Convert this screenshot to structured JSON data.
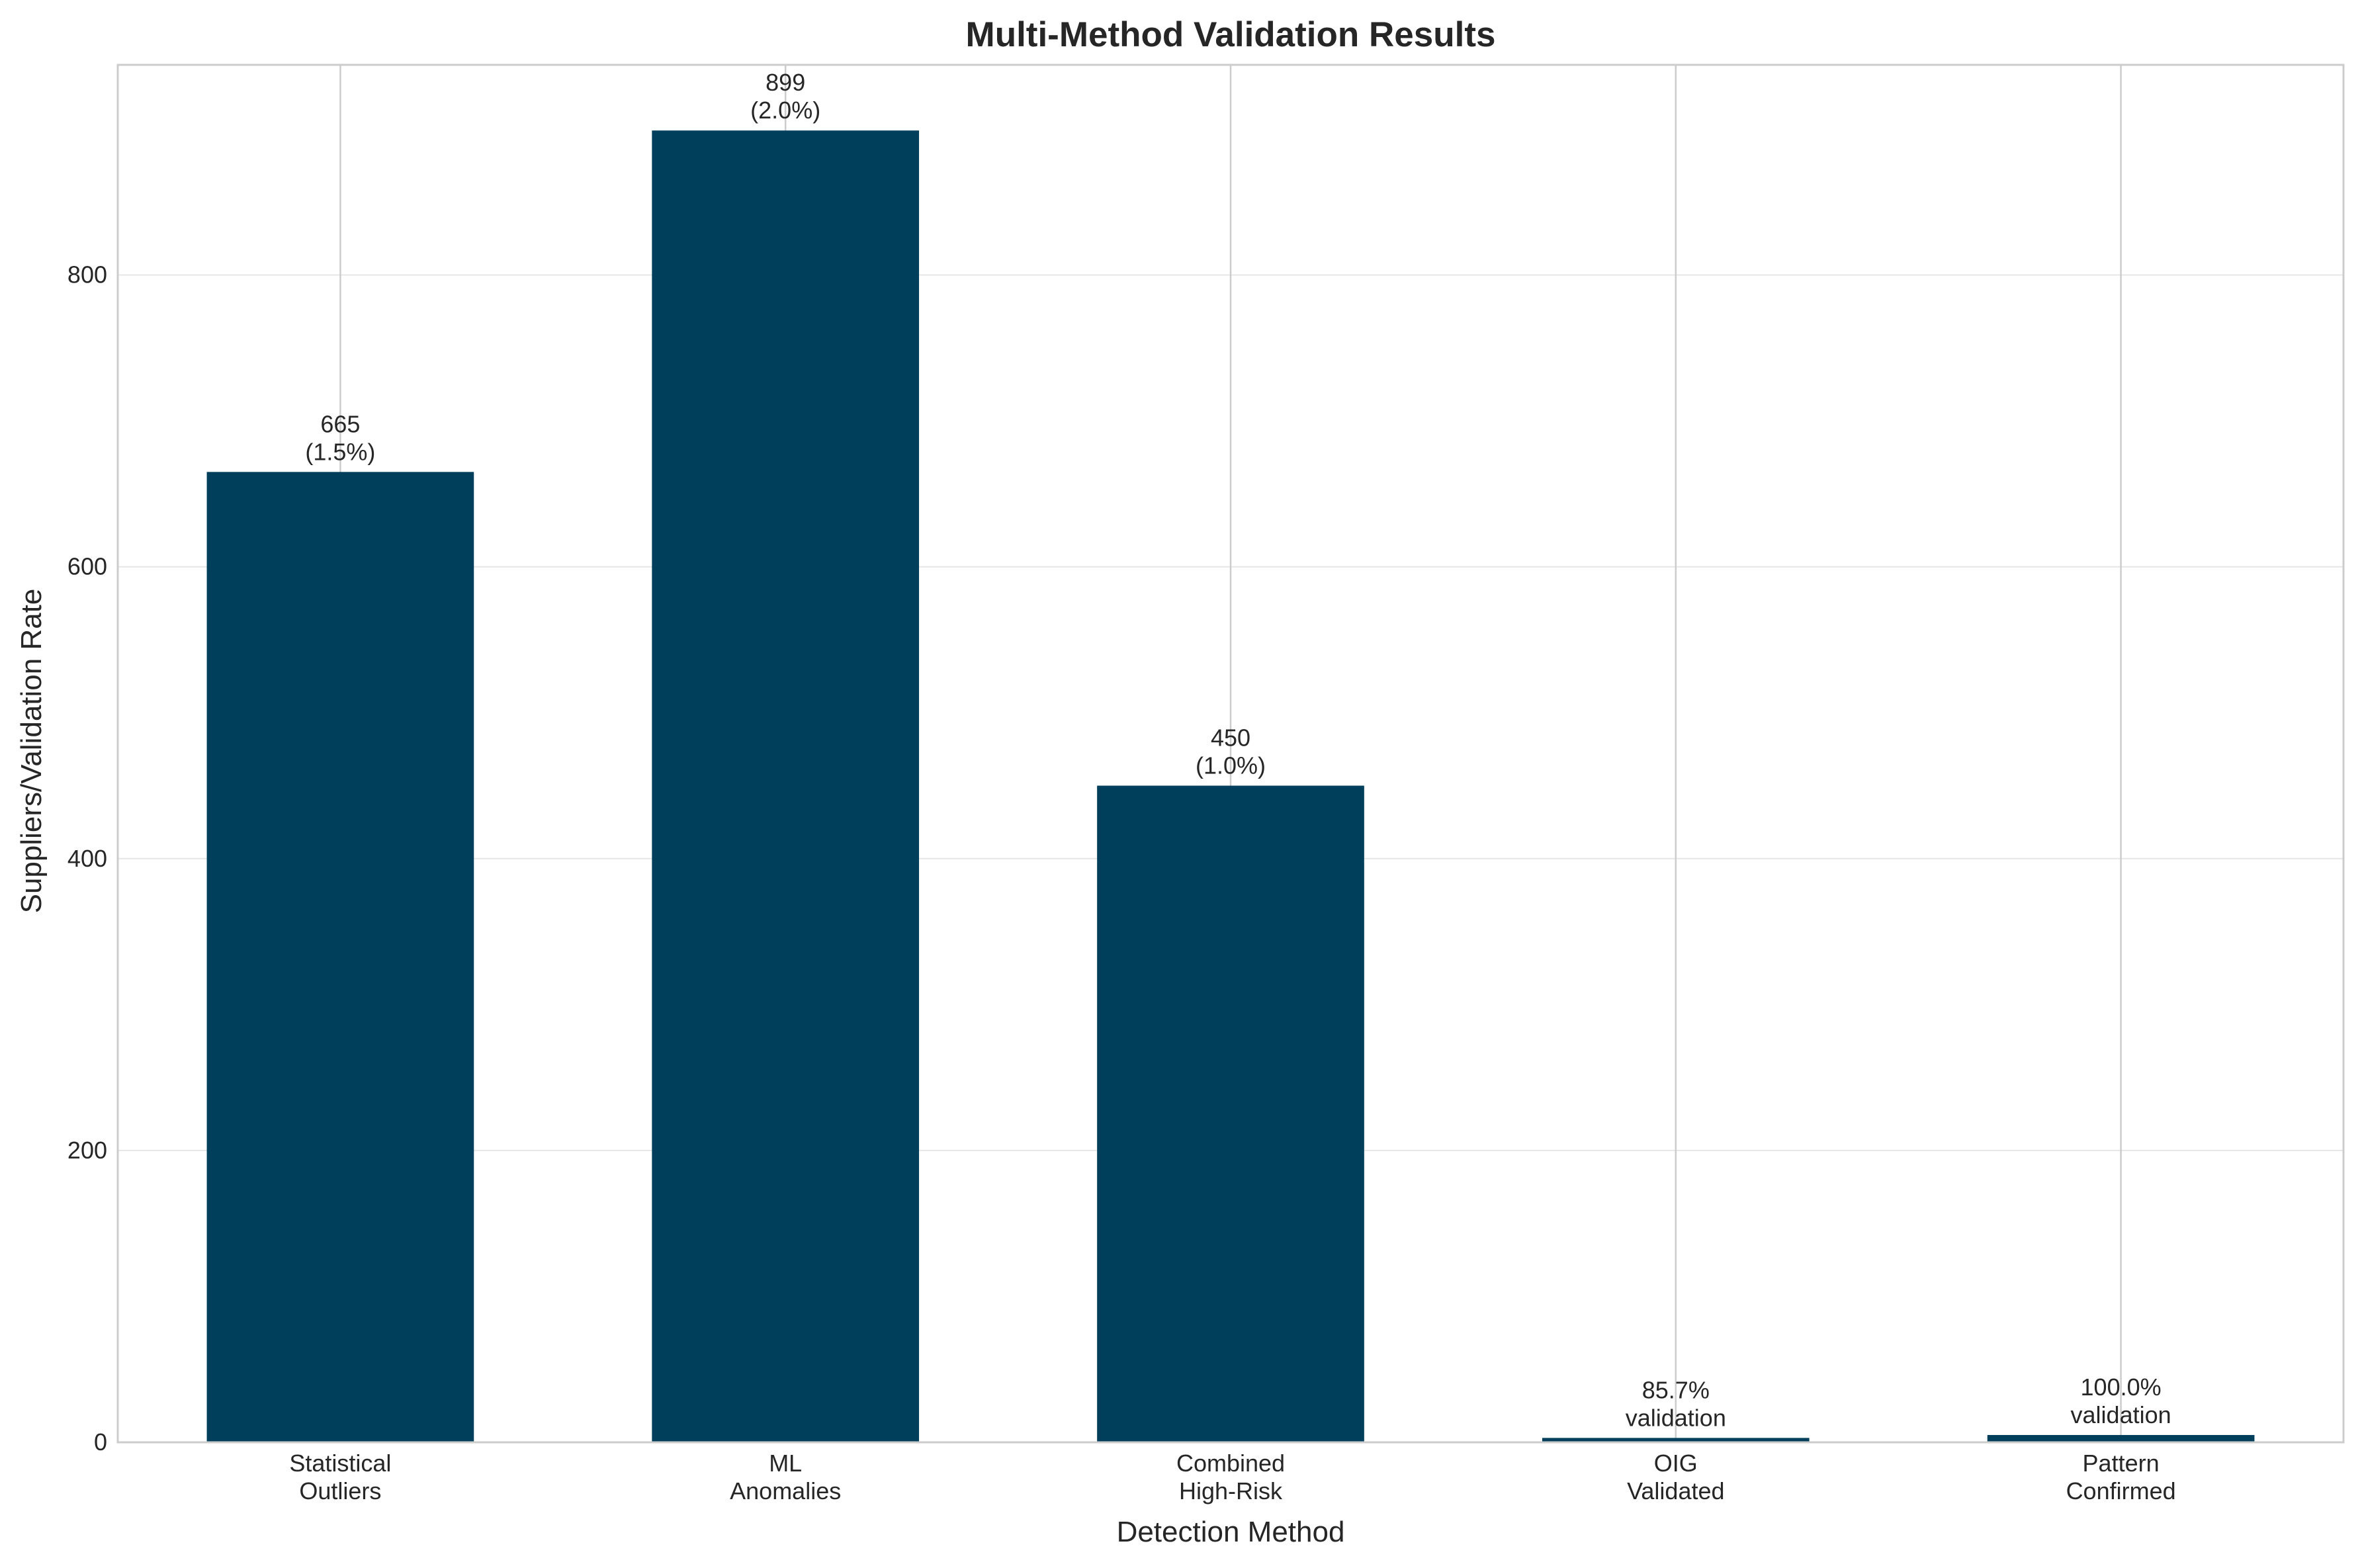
{
  "chart_data": {
    "type": "bar",
    "title": "Multi-Method Validation Results",
    "xlabel": "Detection Method",
    "ylabel": "Suppliers/Validation Rate",
    "categories": [
      [
        "Statistical",
        "Outliers"
      ],
      [
        "ML",
        "Anomalies"
      ],
      [
        "Combined",
        "High-Risk"
      ],
      [
        "OIG",
        "Validated"
      ],
      [
        "Pattern",
        "Confirmed"
      ]
    ],
    "values": [
      665,
      899,
      450,
      3,
      5
    ],
    "bar_labels": [
      [
        "665",
        "(1.5%)"
      ],
      [
        "899",
        "(2.0%)"
      ],
      [
        "450",
        "(1.0%)"
      ],
      [
        "85.7%",
        "validation"
      ],
      [
        "100.0%",
        "validation"
      ]
    ],
    "ylim": [
      0,
      944
    ],
    "yticks": [
      0,
      200,
      400,
      600,
      800
    ],
    "grid": true,
    "bar_color": "#003f5c",
    "grid_color": "#e6e6e6",
    "vertical_grid_color": "#cccccc",
    "spine_color": "#cccccc"
  }
}
